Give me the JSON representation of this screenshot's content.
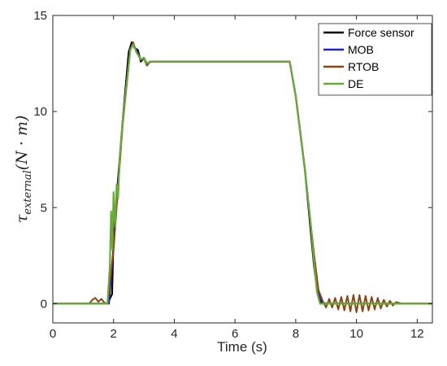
{
  "chart_data": {
    "type": "line",
    "title": "",
    "xlabel": "Time (s)",
    "ylabel": {
      "base": "τ",
      "subscript": "external",
      "paren": "(N · m)"
    },
    "xlim": [
      0,
      12.5
    ],
    "ylim": [
      -1,
      15
    ],
    "xticks": [
      0,
      2,
      4,
      6,
      8,
      10,
      12
    ],
    "yticks": [
      0,
      5,
      10,
      15
    ],
    "grid": false,
    "legend_position": "top-right",
    "series": [
      {
        "name": "Force sensor",
        "color": "#000000",
        "x": [
          0,
          1.8,
          1.95,
          2.0,
          2.3,
          2.5,
          2.6,
          2.7,
          2.8,
          2.9,
          3.0,
          3.1,
          3.2,
          4.0,
          6.0,
          7.8,
          8.0,
          8.3,
          8.6,
          8.7,
          8.8,
          9.0,
          12.5
        ],
        "y": [
          0,
          0,
          0.5,
          3.5,
          9.5,
          13.1,
          13.6,
          13.3,
          13.2,
          12.6,
          12.8,
          12.4,
          12.6,
          12.6,
          12.6,
          12.6,
          10.8,
          7.0,
          2.0,
          0.8,
          0.1,
          0,
          0
        ]
      },
      {
        "name": "MOB",
        "color": "#2020c8",
        "x": [
          0,
          1.85,
          2.0,
          2.3,
          2.55,
          2.65,
          2.75,
          2.9,
          3.0,
          3.1,
          3.2,
          4.0,
          6.0,
          7.8,
          8.0,
          8.3,
          8.6,
          8.75,
          8.9,
          12.5
        ],
        "y": [
          0,
          0,
          3.0,
          9.5,
          13.3,
          13.5,
          13.2,
          12.7,
          12.8,
          12.5,
          12.6,
          12.6,
          12.6,
          12.6,
          10.8,
          7.0,
          2.5,
          0.5,
          0,
          0
        ]
      },
      {
        "name": "RTOB",
        "color": "#8b4513",
        "x": [
          0,
          1.2,
          1.3,
          1.4,
          1.5,
          1.6,
          1.7,
          1.8,
          2.0,
          2.3,
          2.55,
          2.65,
          2.75,
          2.9,
          3.0,
          3.1,
          3.2,
          4.0,
          6.0,
          7.8,
          8.0,
          8.3,
          8.6,
          8.75,
          8.9,
          9.0,
          9.1,
          9.2,
          9.3,
          9.4,
          9.5,
          9.6,
          9.7,
          9.8,
          9.9,
          10.0,
          10.1,
          10.2,
          10.3,
          10.4,
          10.5,
          10.6,
          10.7,
          10.8,
          10.9,
          11.0,
          11.1,
          11.2,
          11.3,
          11.5,
          12.5
        ],
        "y": [
          0,
          0,
          0.2,
          0.3,
          0.1,
          0.25,
          0.05,
          0,
          2.8,
          9.3,
          13.2,
          13.6,
          13.1,
          12.7,
          12.8,
          12.4,
          12.6,
          12.6,
          12.6,
          12.6,
          10.8,
          7.0,
          2.6,
          0.7,
          0.1,
          -0.2,
          0.25,
          -0.2,
          0.3,
          -0.3,
          0.35,
          -0.35,
          0.4,
          -0.4,
          0.45,
          -0.45,
          0.45,
          -0.4,
          0.4,
          -0.35,
          0.35,
          -0.3,
          0.3,
          -0.25,
          0.2,
          -0.15,
          0.15,
          -0.1,
          0.08,
          0,
          0
        ]
      },
      {
        "name": "DE",
        "color": "#6aaa3c",
        "x": [
          0,
          1.8,
          1.88,
          1.92,
          1.96,
          2.0,
          2.05,
          2.1,
          2.15,
          2.2,
          2.3,
          2.55,
          2.65,
          2.75,
          2.9,
          3.0,
          3.1,
          3.2,
          4.0,
          6.0,
          7.8,
          8.0,
          8.3,
          8.5,
          8.6,
          8.7,
          8.8,
          9.0,
          12.5
        ],
        "y": [
          0,
          0,
          2.0,
          4.8,
          2.8,
          5.8,
          4.0,
          6.2,
          5.5,
          7.5,
          9.5,
          13.2,
          13.5,
          13.1,
          12.7,
          12.8,
          12.5,
          12.6,
          12.6,
          12.6,
          12.6,
          10.8,
          7.0,
          4.0,
          2.2,
          0.6,
          0,
          0,
          0
        ]
      }
    ]
  }
}
